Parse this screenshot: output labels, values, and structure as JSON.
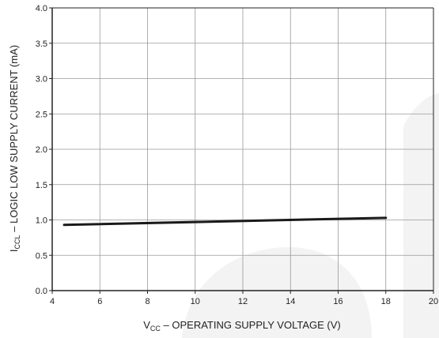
{
  "chart_data": {
    "type": "line",
    "xlabel": "V",
    "xlabel_sub": "CC",
    "xlabel_rest": " – OPERATING SUPPLY VOLTAGE (V)",
    "ylabel": "I",
    "ylabel_sub": "CCL",
    "ylabel_rest": " – LOGIC LOW SUPPLY CURRENT (mA)",
    "xlim": [
      4,
      20
    ],
    "ylim": [
      0.0,
      4.0
    ],
    "x_ticks": [
      "4",
      "6",
      "8",
      "10",
      "12",
      "14",
      "16",
      "18",
      "20"
    ],
    "y_ticks": [
      "0.0",
      "0.5",
      "1.0",
      "1.5",
      "2.0",
      "2.5",
      "3.0",
      "3.5",
      "4.0"
    ],
    "grid": true,
    "series": [
      {
        "x": [
          4.5,
          18
        ],
        "y": [
          0.93,
          1.03
        ]
      }
    ],
    "colors": {
      "line": "#1a1a1a",
      "grid": "#999999",
      "background_shape": "#f3f3f3"
    }
  }
}
